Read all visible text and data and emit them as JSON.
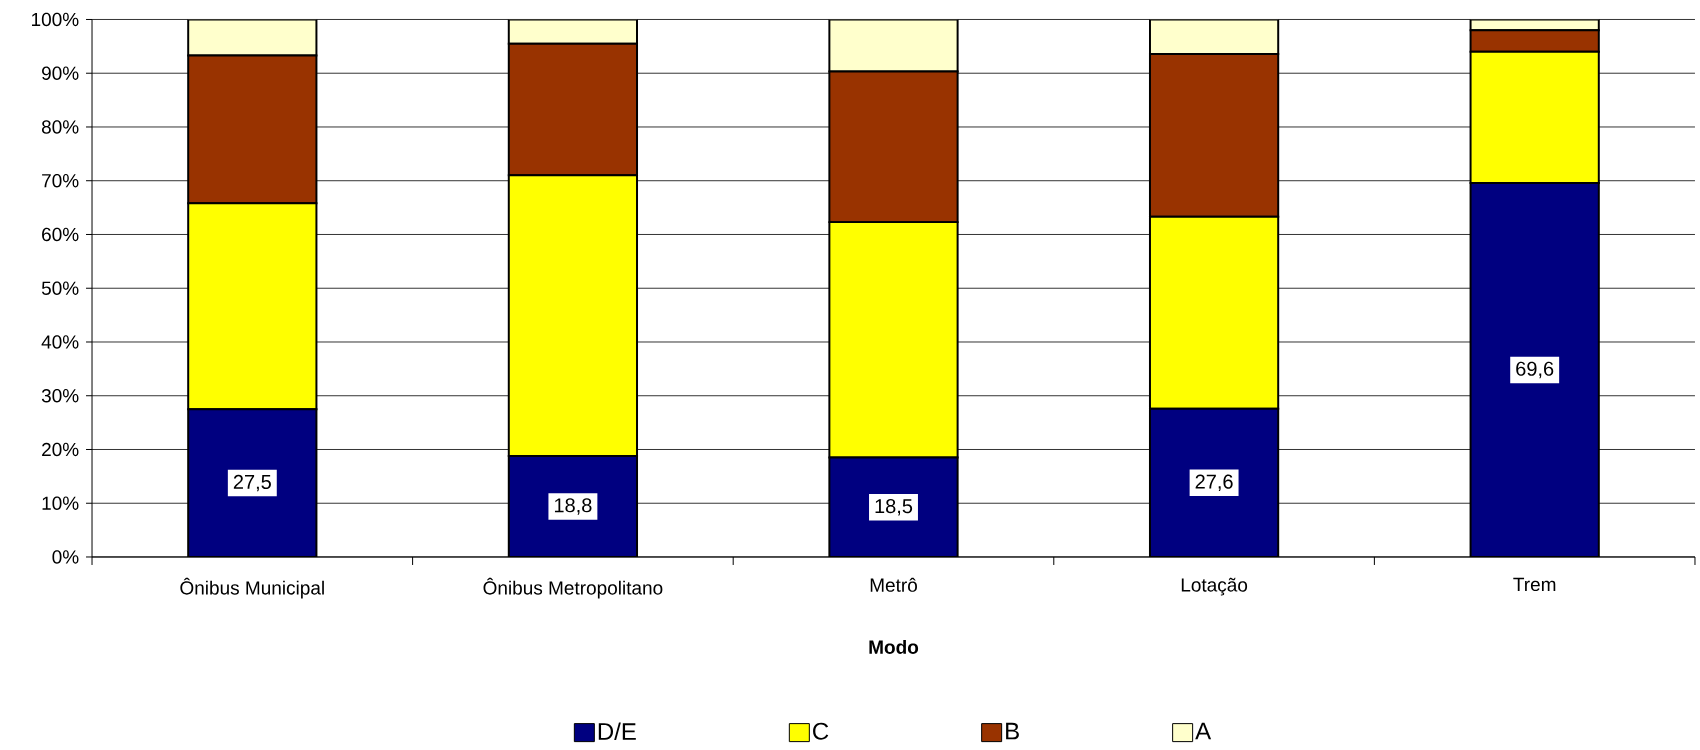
{
  "chart_data": {
    "type": "bar",
    "stacked": true,
    "xlabel": "Modo",
    "categories": [
      "Ônibus Municipal",
      "Ônibus Metropolitano",
      "Metrô",
      "Lotação",
      "Trem"
    ],
    "series": [
      {
        "name": "D/E",
        "color": "#000080",
        "values": [
          27.5,
          18.8,
          18.5,
          27.6,
          69.6
        ],
        "value_labels": [
          "27,5",
          "18,8",
          "18,5",
          "27,6",
          "69,6"
        ]
      },
      {
        "name": "C",
        "color": "#ffff00",
        "values": [
          38.3,
          52.2,
          43.8,
          35.7,
          24.4
        ]
      },
      {
        "name": "B",
        "color": "#993300",
        "values": [
          27.5,
          24.5,
          28.0,
          30.3,
          4.0
        ]
      },
      {
        "name": "A",
        "color": "#ffffcc",
        "values": [
          6.7,
          4.5,
          9.7,
          6.4,
          2.0
        ]
      }
    ],
    "ylim": [
      0,
      100
    ],
    "yticks": [
      {
        "value": 0,
        "label": "0%"
      },
      {
        "value": 10,
        "label": "10%"
      },
      {
        "value": 20,
        "label": "20%"
      },
      {
        "value": 30,
        "label": "30%"
      },
      {
        "value": 40,
        "label": "40%"
      },
      {
        "value": 50,
        "label": "50%"
      },
      {
        "value": 60,
        "label": "60%"
      },
      {
        "value": 70,
        "label": "70%"
      },
      {
        "value": 80,
        "label": "80%"
      },
      {
        "value": 90,
        "label": "90%"
      },
      {
        "value": 100,
        "label": "100%"
      }
    ],
    "grid": "y",
    "legend": "bottom"
  }
}
